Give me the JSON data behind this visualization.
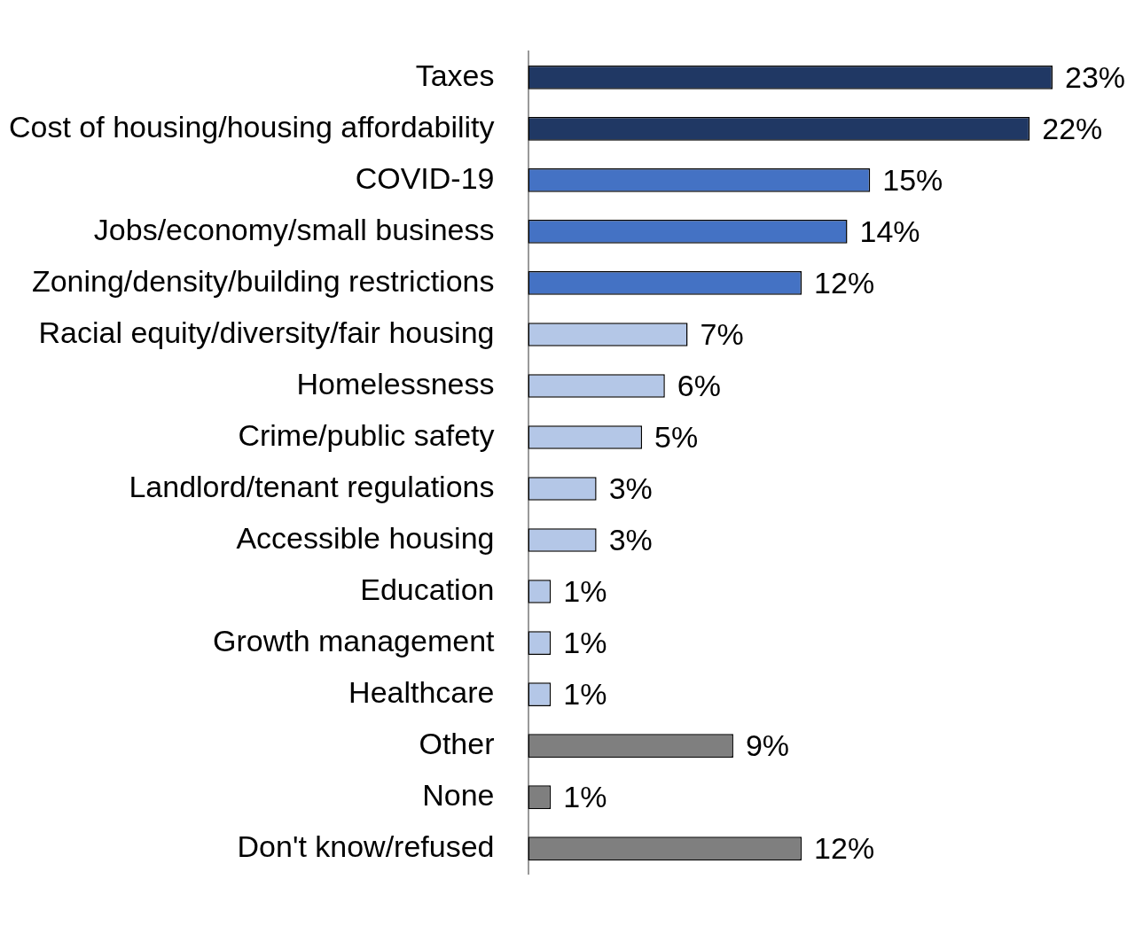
{
  "chart_data": {
    "type": "bar",
    "orientation": "horizontal",
    "categories": [
      "Taxes",
      "Cost of housing/housing affordability",
      "COVID-19",
      "Jobs/economy/small business",
      "Zoning/density/building restrictions",
      "Racial equity/diversity/fair housing",
      "Homelessness",
      "Crime/public safety",
      "Landlord/tenant regulations",
      "Accessible housing",
      "Education",
      "Growth management",
      "Healthcare",
      "Other",
      "None",
      "Don't know/refused"
    ],
    "values": [
      23,
      22,
      15,
      14,
      12,
      7,
      6,
      5,
      3,
      3,
      1,
      1,
      1,
      9,
      1,
      12
    ],
    "value_labels": [
      "23%",
      "22%",
      "15%",
      "14%",
      "12%",
      "7%",
      "6%",
      "5%",
      "3%",
      "3%",
      "1%",
      "1%",
      "1%",
      "9%",
      "1%",
      "12%"
    ],
    "colors": [
      "#203864",
      "#203864",
      "#4472c4",
      "#4472c4",
      "#4472c4",
      "#b4c7e7",
      "#b4c7e7",
      "#b4c7e7",
      "#b4c7e7",
      "#b4c7e7",
      "#b4c7e7",
      "#b4c7e7",
      "#b4c7e7",
      "#7f7f7f",
      "#7f7f7f",
      "#7f7f7f"
    ],
    "grid": false,
    "legend": false
  }
}
